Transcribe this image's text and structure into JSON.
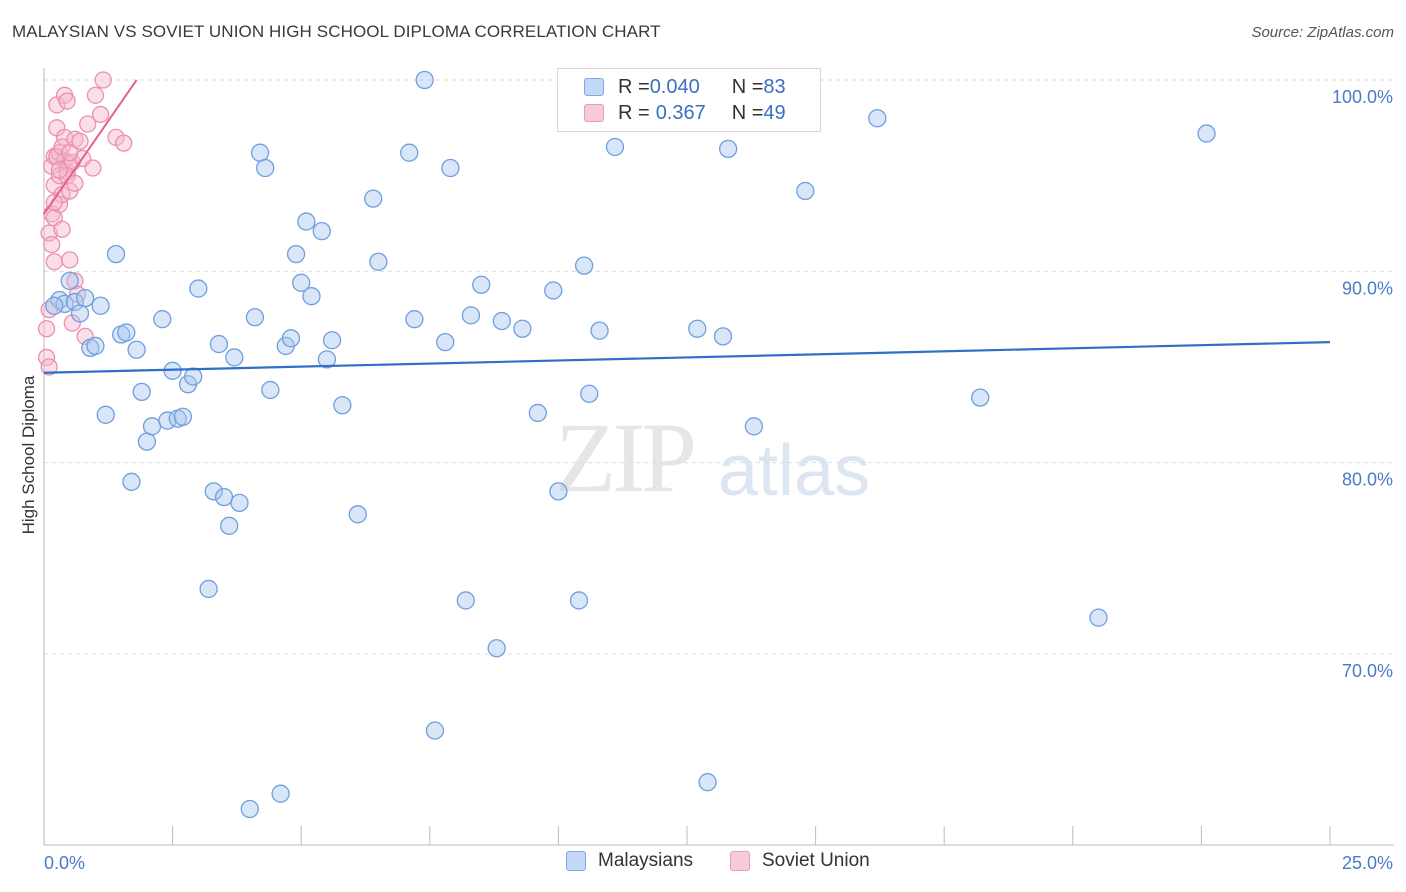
{
  "title": "MALAYSIAN VS SOVIET UNION HIGH SCHOOL DIPLOMA CORRELATION CHART",
  "source": "Source: ZipAtlas.com",
  "watermark": {
    "zip": "ZIP",
    "atlas": "atlas"
  },
  "legend": {
    "rows": [
      {
        "r_label": "R = ",
        "r_value": "0.040",
        "n_label": "N = ",
        "n_value": "83",
        "color": "#a9c8f0"
      },
      {
        "r_label": "R = ",
        "r_value": "0.367",
        "n_label": "N = ",
        "n_value": "49",
        "color": "#f5b8cb"
      }
    ]
  },
  "bottom_legend": {
    "malaysians": "Malaysians",
    "soviet": "Soviet Union"
  },
  "colors": {
    "blue_fill": "#a9c8f0",
    "blue_stroke": "#6f9fde",
    "blue_line": "#2f6fc8",
    "pink_fill": "#f5b8cb",
    "pink_stroke": "#ec8fae",
    "pink_line": "#e2628f",
    "grid": "#dddddd",
    "axis": "#bbbbbb"
  },
  "chart_data": {
    "type": "scatter",
    "title": "MALAYSIAN VS SOVIET UNION HIGH SCHOOL DIPLOMA CORRELATION CHART",
    "ylabel": "High School Diploma",
    "xlabel": "",
    "xlim": [
      0.0,
      25.0
    ],
    "ylim": [
      60.0,
      100.0
    ],
    "x_tick_labels": [
      "0.0%",
      "25.0%"
    ],
    "y_tick_labels": [
      "100.0%",
      "90.0%",
      "80.0%",
      "70.0%"
    ],
    "y_ticks": [
      100,
      90,
      80,
      70
    ],
    "series": [
      {
        "name": "Malaysians",
        "R": 0.04,
        "N": 83,
        "trend": {
          "x": [
            0.0,
            25.0
          ],
          "y": [
            84.7,
            86.3
          ]
        },
        "points": [
          [
            0.3,
            88.5
          ],
          [
            0.4,
            88.3
          ],
          [
            0.5,
            89.5
          ],
          [
            0.6,
            88.4
          ],
          [
            0.7,
            87.8
          ],
          [
            0.9,
            86.0
          ],
          [
            1.0,
            86.1
          ],
          [
            1.1,
            88.2
          ],
          [
            1.2,
            82.5
          ],
          [
            1.4,
            90.9
          ],
          [
            1.5,
            86.7
          ],
          [
            1.6,
            86.8
          ],
          [
            1.7,
            79.0
          ],
          [
            1.8,
            85.9
          ],
          [
            1.9,
            83.7
          ],
          [
            2.0,
            81.1
          ],
          [
            2.1,
            81.9
          ],
          [
            2.3,
            87.5
          ],
          [
            2.4,
            82.2
          ],
          [
            2.5,
            84.8
          ],
          [
            2.6,
            82.3
          ],
          [
            2.7,
            82.4
          ],
          [
            2.8,
            84.1
          ],
          [
            2.9,
            84.5
          ],
          [
            3.0,
            89.1
          ],
          [
            3.2,
            73.4
          ],
          [
            3.3,
            78.5
          ],
          [
            3.4,
            86.2
          ],
          [
            3.5,
            78.2
          ],
          [
            3.6,
            76.7
          ],
          [
            3.7,
            85.5
          ],
          [
            3.8,
            77.9
          ],
          [
            4.0,
            61.9
          ],
          [
            4.1,
            87.6
          ],
          [
            4.2,
            96.2
          ],
          [
            4.3,
            95.4
          ],
          [
            4.4,
            83.8
          ],
          [
            4.6,
            62.7
          ],
          [
            4.7,
            86.1
          ],
          [
            4.8,
            86.5
          ],
          [
            4.9,
            90.9
          ],
          [
            5.0,
            89.4
          ],
          [
            5.1,
            92.6
          ],
          [
            5.2,
            88.7
          ],
          [
            5.4,
            92.1
          ],
          [
            5.5,
            85.4
          ],
          [
            5.6,
            86.4
          ],
          [
            5.8,
            83.0
          ],
          [
            6.1,
            77.3
          ],
          [
            6.4,
            93.8
          ],
          [
            6.5,
            90.5
          ],
          [
            7.1,
            96.2
          ],
          [
            7.2,
            87.5
          ],
          [
            7.4,
            100.0
          ],
          [
            7.6,
            66.0
          ],
          [
            7.8,
            86.3
          ],
          [
            7.9,
            95.4
          ],
          [
            8.2,
            72.8
          ],
          [
            8.3,
            87.7
          ],
          [
            8.5,
            89.3
          ],
          [
            8.8,
            70.3
          ],
          [
            8.9,
            87.4
          ],
          [
            9.3,
            87.0
          ],
          [
            9.6,
            82.6
          ],
          [
            9.9,
            89.0
          ],
          [
            10.0,
            78.5
          ],
          [
            10.4,
            72.8
          ],
          [
            10.5,
            90.3
          ],
          [
            10.6,
            83.6
          ],
          [
            10.8,
            86.9
          ],
          [
            11.1,
            96.5
          ],
          [
            12.7,
            87.0
          ],
          [
            12.9,
            63.3
          ],
          [
            13.2,
            86.6
          ],
          [
            13.3,
            96.4
          ],
          [
            13.8,
            81.9
          ],
          [
            14.8,
            94.2
          ],
          [
            16.2,
            98.0
          ],
          [
            18.2,
            83.4
          ],
          [
            20.5,
            71.9
          ],
          [
            22.6,
            97.2
          ],
          [
            0.2,
            88.2
          ],
          [
            0.8,
            88.6
          ]
        ]
      },
      {
        "name": "Soviet Union",
        "R": 0.367,
        "N": 49,
        "trend": {
          "x": [
            0.0,
            1.8
          ],
          "y": [
            93.0,
            100.0
          ]
        },
        "points": [
          [
            0.05,
            87.0
          ],
          [
            0.05,
            85.5
          ],
          [
            0.1,
            85.0
          ],
          [
            0.1,
            88.0
          ],
          [
            0.1,
            92.0
          ],
          [
            0.15,
            93.0
          ],
          [
            0.15,
            95.5
          ],
          [
            0.2,
            96.0
          ],
          [
            0.2,
            94.5
          ],
          [
            0.2,
            92.8
          ],
          [
            0.2,
            90.5
          ],
          [
            0.25,
            97.5
          ],
          [
            0.25,
            98.7
          ],
          [
            0.3,
            96.2
          ],
          [
            0.3,
            95.0
          ],
          [
            0.3,
            93.5
          ],
          [
            0.35,
            94.0
          ],
          [
            0.35,
            92.2
          ],
          [
            0.4,
            95.8
          ],
          [
            0.4,
            97.0
          ],
          [
            0.4,
            99.2
          ],
          [
            0.45,
            98.9
          ],
          [
            0.45,
            95.2
          ],
          [
            0.5,
            95.6
          ],
          [
            0.5,
            94.2
          ],
          [
            0.5,
            90.6
          ],
          [
            0.55,
            87.3
          ],
          [
            0.55,
            95.7
          ],
          [
            0.6,
            96.9
          ],
          [
            0.6,
            89.5
          ],
          [
            0.65,
            88.8
          ],
          [
            0.7,
            96.8
          ],
          [
            0.75,
            95.9
          ],
          [
            0.8,
            86.6
          ],
          [
            0.85,
            97.7
          ],
          [
            0.95,
            95.4
          ],
          [
            1.0,
            99.2
          ],
          [
            1.1,
            98.2
          ],
          [
            1.15,
            100.0
          ],
          [
            1.4,
            97.0
          ],
          [
            1.55,
            96.7
          ],
          [
            0.15,
            91.4
          ],
          [
            0.25,
            96.0
          ],
          [
            0.35,
            96.5
          ],
          [
            0.45,
            95.0
          ],
          [
            0.6,
            94.6
          ],
          [
            0.2,
            93.6
          ],
          [
            0.3,
            95.3
          ],
          [
            0.5,
            96.2
          ]
        ]
      }
    ]
  }
}
